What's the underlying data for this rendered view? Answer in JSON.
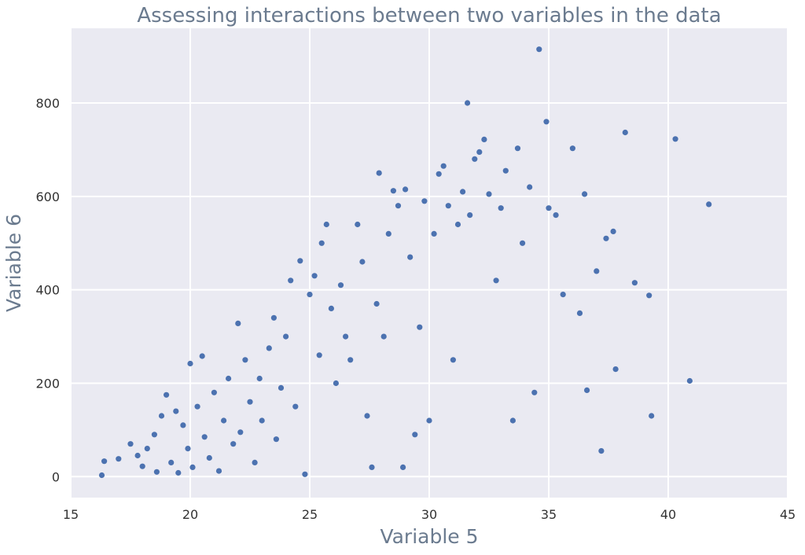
{
  "colors": {
    "background": "#eaeaf2",
    "grid": "#ffffff",
    "point": "#4c72b0"
  },
  "chart_data": {
    "type": "scatter",
    "title": "Assessing interactions between two variables in the data",
    "xlabel": "Variable 5",
    "ylabel": "Variable 6",
    "xlim": [
      15,
      45
    ],
    "ylim": [
      -45,
      960
    ],
    "xticks": [
      15,
      20,
      25,
      30,
      35,
      40,
      45
    ],
    "yticks": [
      0,
      200,
      400,
      600,
      800
    ],
    "grid": true,
    "trend_description": "positive correlation; dense cloud from (16,0) to (35,400)",
    "points": [
      [
        16.3,
        3
      ],
      [
        16.4,
        33
      ],
      [
        17.0,
        38
      ],
      [
        17.5,
        70
      ],
      [
        17.8,
        45
      ],
      [
        18.0,
        22
      ],
      [
        18.2,
        60
      ],
      [
        18.5,
        90
      ],
      [
        18.6,
        10
      ],
      [
        18.8,
        130
      ],
      [
        19.0,
        175
      ],
      [
        19.2,
        30
      ],
      [
        19.4,
        140
      ],
      [
        19.5,
        8
      ],
      [
        19.7,
        110
      ],
      [
        19.9,
        60
      ],
      [
        20.0,
        242
      ],
      [
        20.1,
        20
      ],
      [
        20.3,
        150
      ],
      [
        20.5,
        258
      ],
      [
        20.6,
        85
      ],
      [
        20.8,
        40
      ],
      [
        21.0,
        180
      ],
      [
        21.2,
        12
      ],
      [
        21.4,
        120
      ],
      [
        21.6,
        210
      ],
      [
        21.8,
        70
      ],
      [
        22.0,
        328
      ],
      [
        22.1,
        95
      ],
      [
        22.3,
        250
      ],
      [
        22.5,
        160
      ],
      [
        22.7,
        30
      ],
      [
        22.9,
        210
      ],
      [
        23.0,
        120
      ],
      [
        23.3,
        275
      ],
      [
        23.5,
        340
      ],
      [
        23.6,
        80
      ],
      [
        23.8,
        190
      ],
      [
        24.0,
        300
      ],
      [
        24.2,
        420
      ],
      [
        24.4,
        150
      ],
      [
        24.6,
        462
      ],
      [
        24.8,
        5
      ],
      [
        25.0,
        390
      ],
      [
        25.2,
        430
      ],
      [
        25.4,
        260
      ],
      [
        25.5,
        500
      ],
      [
        25.7,
        540
      ],
      [
        25.9,
        360
      ],
      [
        26.1,
        200
      ],
      [
        26.3,
        410
      ],
      [
        26.5,
        300
      ],
      [
        26.7,
        250
      ],
      [
        27.0,
        540
      ],
      [
        27.2,
        460
      ],
      [
        27.4,
        130
      ],
      [
        27.6,
        20
      ],
      [
        27.8,
        370
      ],
      [
        27.9,
        650
      ],
      [
        28.1,
        300
      ],
      [
        28.3,
        520
      ],
      [
        28.5,
        612
      ],
      [
        28.7,
        580
      ],
      [
        28.9,
        20
      ],
      [
        29.0,
        615
      ],
      [
        29.2,
        470
      ],
      [
        29.4,
        90
      ],
      [
        29.6,
        320
      ],
      [
        29.8,
        590
      ],
      [
        30.0,
        120
      ],
      [
        30.2,
        520
      ],
      [
        30.4,
        648
      ],
      [
        30.6,
        665
      ],
      [
        30.8,
        580
      ],
      [
        31.0,
        250
      ],
      [
        31.2,
        540
      ],
      [
        31.4,
        610
      ],
      [
        31.6,
        800
      ],
      [
        31.7,
        560
      ],
      [
        31.9,
        680
      ],
      [
        32.1,
        695
      ],
      [
        32.3,
        722
      ],
      [
        32.5,
        605
      ],
      [
        32.8,
        420
      ],
      [
        33.0,
        575
      ],
      [
        33.2,
        655
      ],
      [
        33.5,
        120
      ],
      [
        33.7,
        703
      ],
      [
        33.9,
        500
      ],
      [
        34.2,
        620
      ],
      [
        34.4,
        180
      ],
      [
        34.6,
        915
      ],
      [
        34.9,
        760
      ],
      [
        35.0,
        575
      ],
      [
        35.3,
        560
      ],
      [
        35.6,
        390
      ],
      [
        36.0,
        703
      ],
      [
        36.3,
        350
      ],
      [
        36.5,
        605
      ],
      [
        36.6,
        185
      ],
      [
        37.0,
        440
      ],
      [
        37.2,
        55
      ],
      [
        37.4,
        510
      ],
      [
        37.7,
        525
      ],
      [
        37.8,
        230
      ],
      [
        38.2,
        737
      ],
      [
        38.6,
        415
      ],
      [
        39.2,
        388
      ],
      [
        39.3,
        130
      ],
      [
        40.3,
        723
      ],
      [
        40.9,
        205
      ],
      [
        41.7,
        583
      ]
    ]
  }
}
